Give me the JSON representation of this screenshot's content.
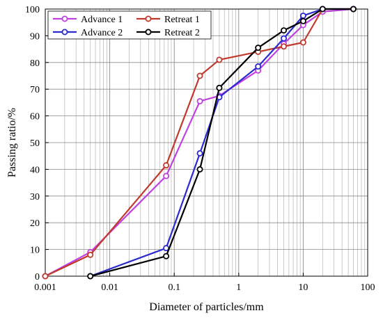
{
  "chart_data": {
    "type": "line",
    "xscale": "log",
    "xlim": [
      0.001,
      100
    ],
    "ylim": [
      0,
      100
    ],
    "xticks": [
      0.001,
      0.01,
      0.1,
      1,
      10,
      100
    ],
    "xtick_labels": [
      "0.001",
      "0.01",
      "0.1",
      "1",
      "10",
      "100"
    ],
    "yticks": [
      0,
      10,
      20,
      30,
      40,
      50,
      60,
      70,
      80,
      90,
      100
    ],
    "ytick_labels": [
      "0",
      "10",
      "20",
      "30",
      "40",
      "50",
      "60",
      "70",
      "80",
      "90",
      "100"
    ],
    "xlabel": "Diameter of particles/mm",
    "ylabel": "Passing ratio/%",
    "grid": "log minor vertical grid, major horizontal grid",
    "legend_placement": "top-left",
    "series": [
      {
        "name": "Advance 1",
        "color": "#c040e0",
        "x": [
          0.001,
          0.005,
          0.075,
          0.25,
          0.5,
          2,
          5,
          10,
          20,
          60
        ],
        "y": [
          0,
          9,
          37.5,
          65.5,
          67.5,
          77,
          87,
          94,
          99,
          100
        ]
      },
      {
        "name": "Retreat 1",
        "color": "#c0392b",
        "x": [
          0.001,
          0.005,
          0.075,
          0.25,
          0.5,
          2,
          5,
          10,
          20,
          60
        ],
        "y": [
          0,
          8,
          41.5,
          75,
          81,
          84,
          86,
          87.5,
          100,
          100
        ]
      },
      {
        "name": "Advance 2",
        "color": "#2a2ad0",
        "x": [
          0.005,
          0.075,
          0.25,
          0.5,
          2,
          5,
          10,
          20,
          60
        ],
        "y": [
          0,
          10.5,
          46,
          67,
          78.5,
          89,
          97.5,
          100,
          100
        ]
      },
      {
        "name": "Retreat 2",
        "color": "#000000",
        "x": [
          0.005,
          0.075,
          0.25,
          0.5,
          2,
          5,
          10,
          20,
          60
        ],
        "y": [
          0,
          7.5,
          40,
          70.5,
          85.5,
          92,
          95.5,
          100,
          100
        ]
      }
    ]
  }
}
